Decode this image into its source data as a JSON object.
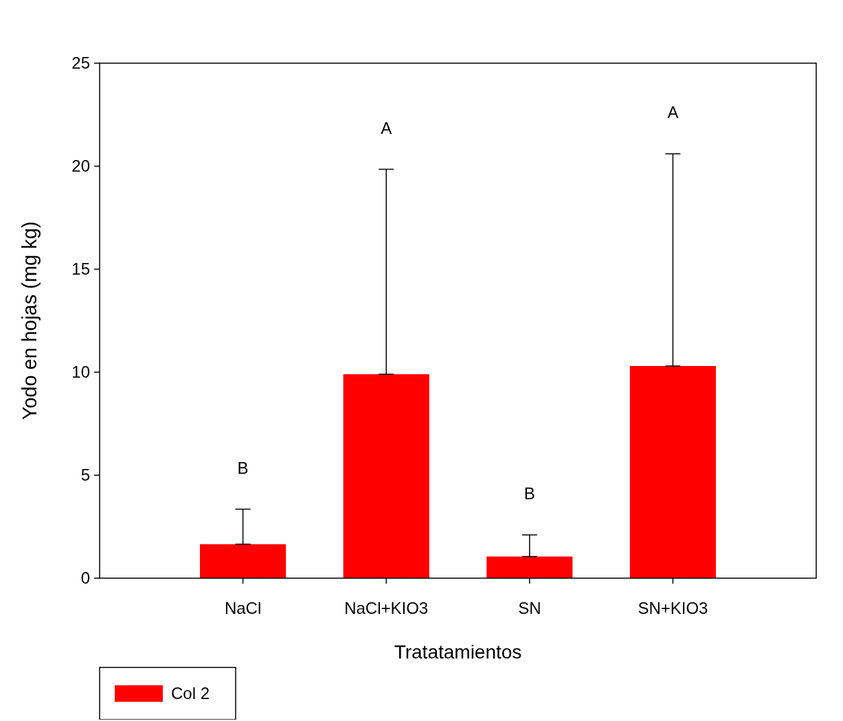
{
  "chart_data": {
    "type": "bar",
    "xlabel": "Tratatamientos",
    "ylabel": "Yodo en hojas (mg kg)",
    "categories": [
      "NaCl",
      "NaCl+KIO3",
      "SN",
      "SN+KIO3"
    ],
    "series": [
      {
        "name": "Col 2",
        "color": "#ff0000",
        "values": [
          1.65,
          9.9,
          1.05,
          10.3
        ],
        "errors": [
          [
            1.65,
            3.35
          ],
          [
            9.9,
            19.85
          ],
          [
            1.05,
            2.1
          ],
          [
            10.3,
            20.6
          ]
        ]
      }
    ],
    "ylim": [
      0,
      25
    ],
    "yticks": [
      0,
      5,
      10,
      15,
      20,
      25
    ],
    "grid": false,
    "legend": "bottom left",
    "annotations": [
      "B",
      "A",
      "B",
      "A"
    ]
  }
}
